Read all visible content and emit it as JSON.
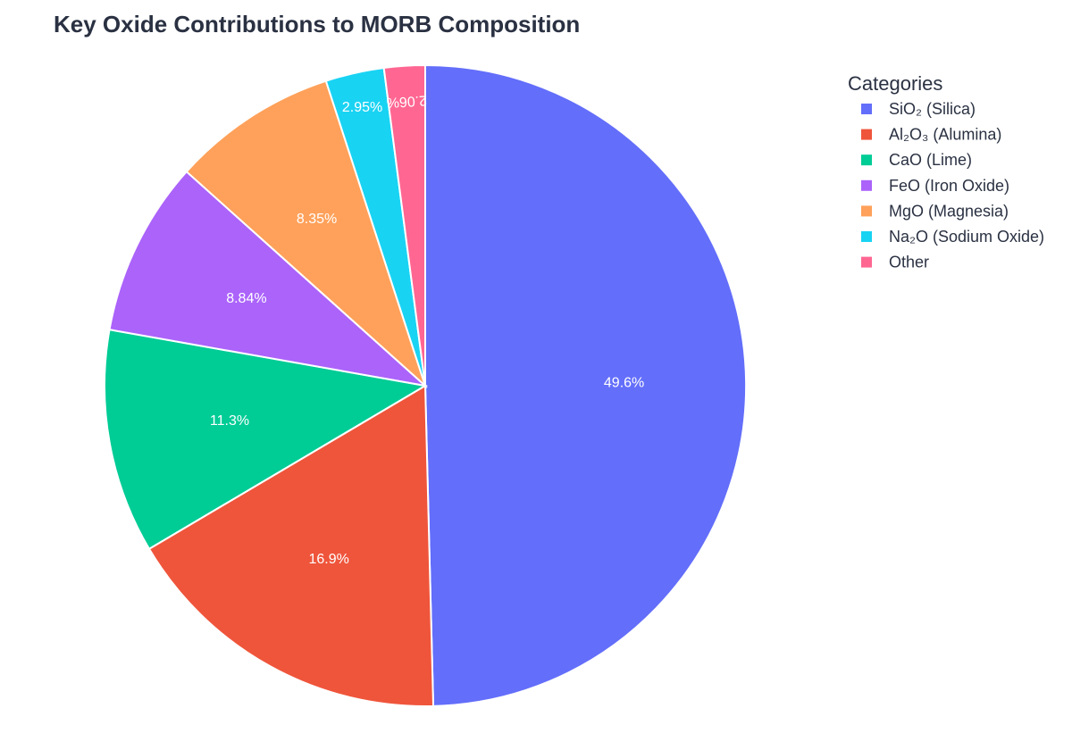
{
  "chart_data": {
    "type": "pie",
    "title": "Key Oxide Contributions to MORB Composition",
    "legend_title": "Categories",
    "legend_position": "top-right",
    "direction": "clockwise",
    "start_angle_deg": 0,
    "categories": [
      "SiO₂ (Silica)",
      "Al₂O₃ (Alumina)",
      "CaO (Lime)",
      "FeO (Iron Oxide)",
      "MgO (Magnesia)",
      "Na₂O (Sodium Oxide)",
      "Other"
    ],
    "values": [
      49.6,
      16.9,
      11.3,
      8.84,
      8.35,
      2.95,
      2.06
    ],
    "labels": [
      "49.6%",
      "16.9%",
      "11.3%",
      "8.84%",
      "8.35%",
      "2.95%",
      "2.06%"
    ],
    "colors": [
      "#636efa",
      "#ef553b",
      "#00cc96",
      "#ab63fa",
      "#ffa15a",
      "#19d3f3",
      "#ff6692"
    ]
  }
}
